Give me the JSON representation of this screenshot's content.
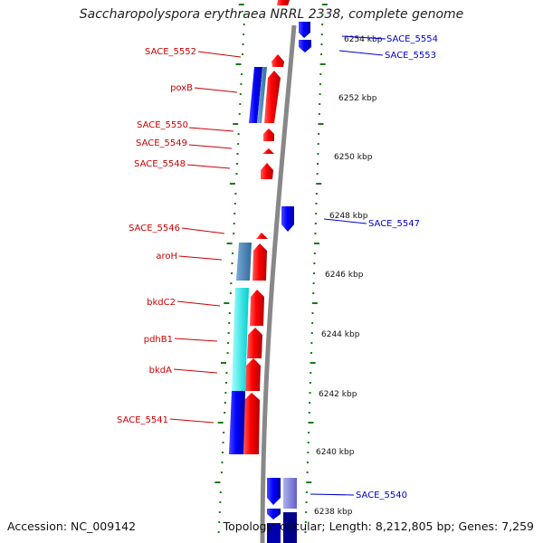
{
  "title": "Saccharopolyspora erythraea NRRL 2338, complete genome",
  "accession": "Accession: NC_009142",
  "topology": "Topology: circular; Length: 8,212,805 bp; Genes: 7,259",
  "ticks": [
    "6254 kbp",
    "6252 kbp",
    "6250 kbp",
    "6248 kbp",
    "6246 kbp",
    "6244 kbp",
    "6242 kbp",
    "6240 kbp",
    "6238 kbp"
  ],
  "genes_left": [
    "SACE_5552",
    "poxB",
    "SACE_5550",
    "SACE_5549",
    "SACE_5548",
    "SACE_5546",
    "aroH",
    "bkdC2",
    "pdhB1",
    "bkdA",
    "SACE_5541"
  ],
  "genes_right": [
    "SACE_5554",
    "SACE_5553",
    "SACE_5547",
    "SACE_5540"
  ],
  "colors": {
    "forward_gene": "#ff0000",
    "reverse_gene": "#0000ff",
    "label_left": "#cc0000",
    "label_right": "#0000cc",
    "backbone": "#888888",
    "tick": "#1a7a1a",
    "cog_steelblue": "#4682b4",
    "cog_cyan": "#00ffff",
    "cog_navy": "#00008b",
    "cog_lavender": "#8080e0"
  }
}
